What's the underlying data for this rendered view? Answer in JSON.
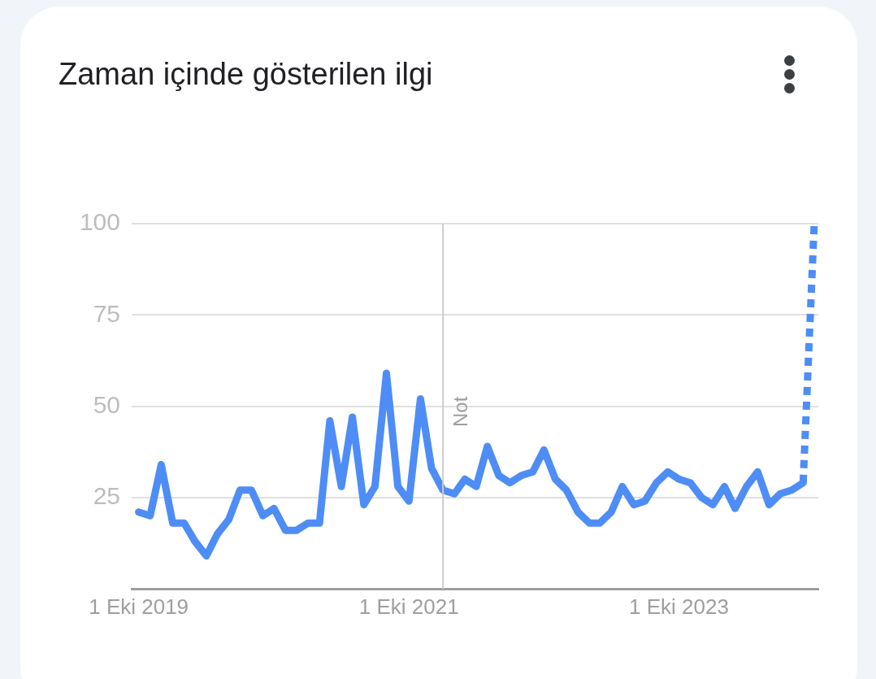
{
  "chart_data": {
    "type": "line",
    "title": "Zaman içinde gösterilen ilgi",
    "x": [
      "2019-10",
      "2019-11",
      "2019-12",
      "2020-01",
      "2020-02",
      "2020-03",
      "2020-04",
      "2020-05",
      "2020-06",
      "2020-07",
      "2020-08",
      "2020-09",
      "2020-10",
      "2020-11",
      "2020-12",
      "2021-01",
      "2021-02",
      "2021-03",
      "2021-04",
      "2021-05",
      "2021-06",
      "2021-07",
      "2021-08",
      "2021-09",
      "2021-10",
      "2021-11",
      "2021-12",
      "2022-01",
      "2022-02",
      "2022-03",
      "2022-04",
      "2022-05",
      "2022-06",
      "2022-07",
      "2022-08",
      "2022-09",
      "2022-10",
      "2022-11",
      "2022-12",
      "2023-01",
      "2023-02",
      "2023-03",
      "2023-04",
      "2023-05",
      "2023-06",
      "2023-07",
      "2023-08",
      "2023-09",
      "2023-10",
      "2023-11",
      "2023-12",
      "2024-01",
      "2024-02",
      "2024-03",
      "2024-04",
      "2024-05",
      "2024-06",
      "2024-07",
      "2024-08",
      "2024-09",
      "2024-10"
    ],
    "series": [
      {
        "color": "#4e8df5",
        "line_style": "solid",
        "values": [
          21,
          20,
          34,
          18,
          18,
          13,
          9,
          15,
          19,
          27,
          27,
          20,
          22,
          16,
          16,
          18,
          18,
          46,
          28,
          47,
          23,
          28,
          59,
          28,
          24,
          52,
          33,
          27,
          26,
          30,
          28,
          39,
          31,
          29,
          31,
          32,
          38,
          30,
          27,
          21,
          18,
          18,
          21,
          28,
          23,
          24,
          29,
          32,
          30,
          29,
          25,
          23,
          28,
          22,
          28,
          32,
          23,
          26,
          27,
          29,
          null
        ]
      },
      {
        "color": "#4e8df5",
        "line_style": "dotted",
        "values": [
          null,
          null,
          null,
          null,
          null,
          null,
          null,
          null,
          null,
          null,
          null,
          null,
          null,
          null,
          null,
          null,
          null,
          null,
          null,
          null,
          null,
          null,
          null,
          null,
          null,
          null,
          null,
          null,
          null,
          null,
          null,
          null,
          null,
          null,
          null,
          null,
          null,
          null,
          null,
          null,
          null,
          null,
          null,
          null,
          null,
          null,
          null,
          null,
          null,
          null,
          null,
          null,
          null,
          null,
          null,
          null,
          null,
          null,
          null,
          29,
          100
        ]
      }
    ],
    "xlim": [
      "2019-09-12",
      "2024-10-12"
    ],
    "xticks": [
      {
        "value": "2019-10-01",
        "label": "1 Eki 2019"
      },
      {
        "value": "2021-10-01",
        "label": "1 Eki 2021"
      },
      {
        "value": "2023-10-01",
        "label": "1 Eki 2023"
      }
    ],
    "ylim": [
      0,
      100
    ],
    "yticks": [
      25,
      50,
      75,
      100
    ],
    "grid": "y",
    "ref_lines": [
      {
        "axis": "x",
        "value": "2022-01-01",
        "label": "Not",
        "color": "#cccccc"
      }
    ]
  }
}
